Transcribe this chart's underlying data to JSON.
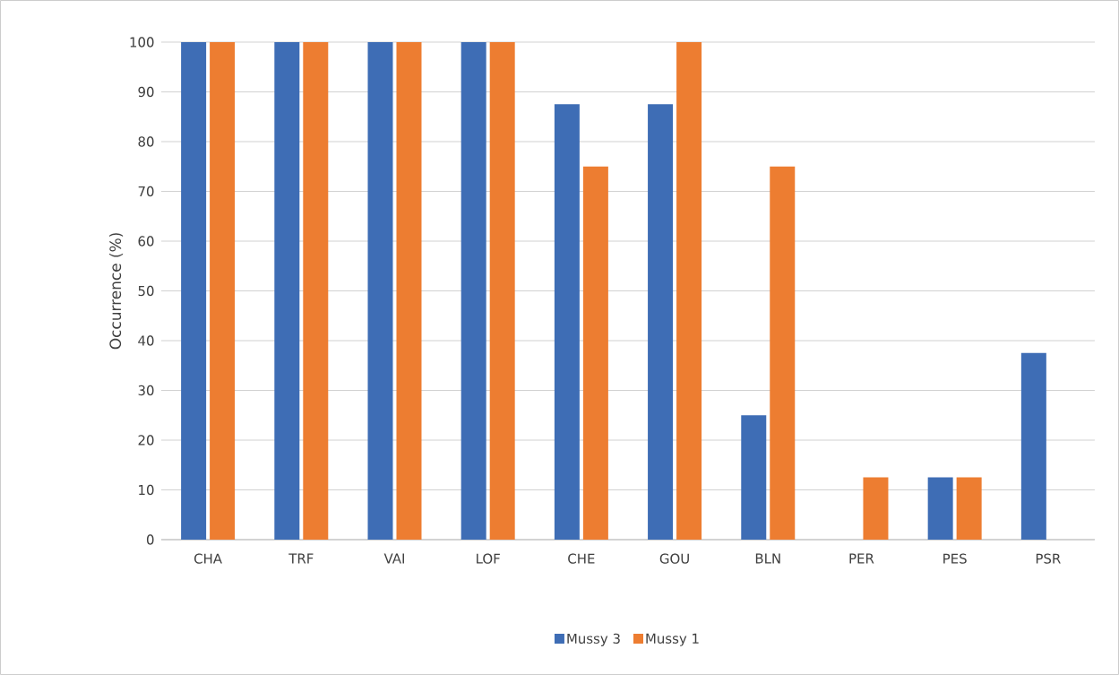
{
  "chart_data": {
    "type": "bar",
    "ylabel": "Occurrence (%)",
    "categories": [
      "CHA",
      "TRF",
      "VAI",
      "LOF",
      "CHE",
      "GOU",
      "BLN",
      "PER",
      "PES",
      "PSR"
    ],
    "series": [
      {
        "name": "Mussy 3",
        "color": "#3e6db5",
        "values": [
          100,
          100,
          100,
          100,
          87.5,
          87.5,
          25,
          0,
          12.5,
          37.5
        ]
      },
      {
        "name": "Mussy 1",
        "color": "#ed7d31",
        "values": [
          100,
          100,
          100,
          100,
          75,
          100,
          75,
          12.5,
          12.5,
          0
        ]
      }
    ],
    "ylim": [
      0,
      100
    ],
    "yticks": [
      0,
      10,
      20,
      30,
      40,
      50,
      60,
      70,
      80,
      90,
      100
    ],
    "grid": "y",
    "legend": "bottom"
  }
}
